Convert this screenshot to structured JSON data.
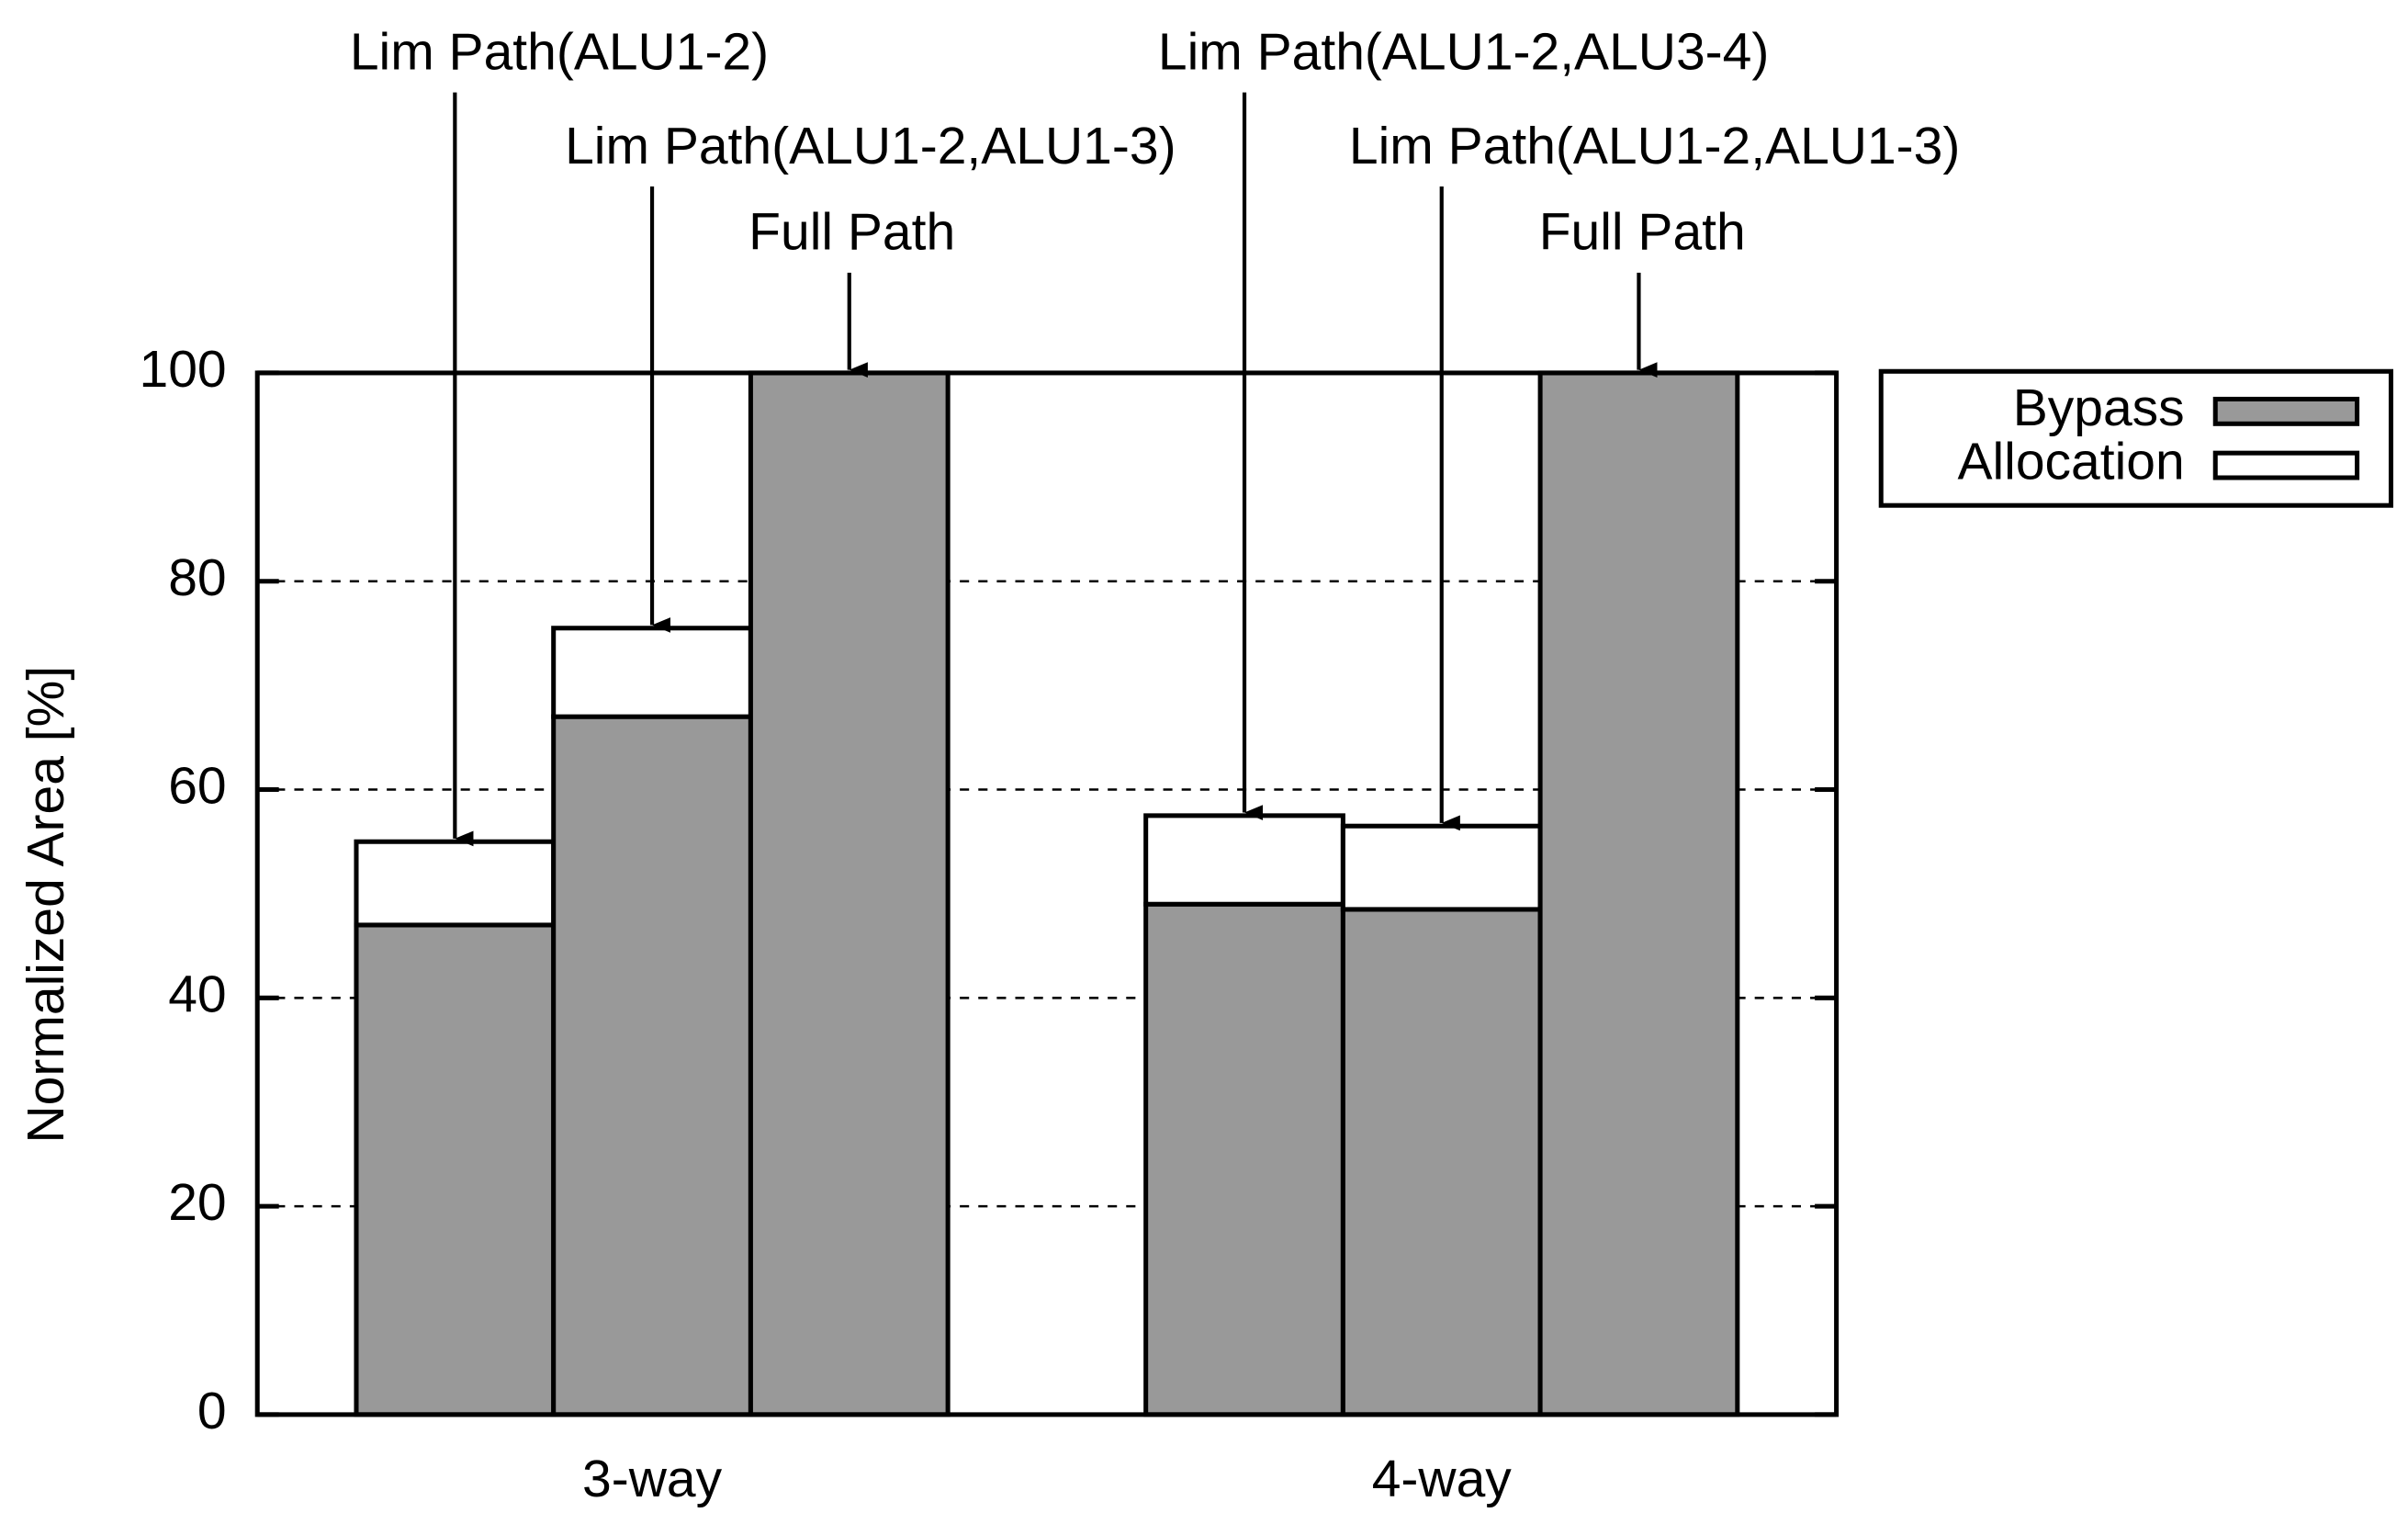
{
  "chart_data": {
    "type": "grouped-stacked-bar",
    "y_label": "Normalized Area [%]",
    "categories": [
      "3-way",
      "4-way"
    ],
    "bar_labels": [
      [
        "Lim Path(ALU1-2)",
        "Lim Path(ALU1-2,ALU1-3)",
        "Full Path"
      ],
      [
        "Lim Path(ALU1-2,ALU3-4)",
        "Lim Path(ALU1-2,ALU1-3)",
        "Full Path"
      ]
    ],
    "series": [
      {
        "name": "Bypass",
        "color": "#999999",
        "values": [
          [
            47,
            67,
            100
          ],
          [
            49,
            48.5,
            100
          ]
        ]
      },
      {
        "name": "Allocation",
        "color": "#ffffff",
        "values": [
          [
            8,
            8.5,
            0
          ],
          [
            8.5,
            8,
            0
          ]
        ]
      }
    ],
    "ylim": [
      0,
      100
    ],
    "yticks": [
      0,
      20,
      40,
      60,
      80,
      100
    ],
    "grid": true,
    "legend": "right-top"
  }
}
